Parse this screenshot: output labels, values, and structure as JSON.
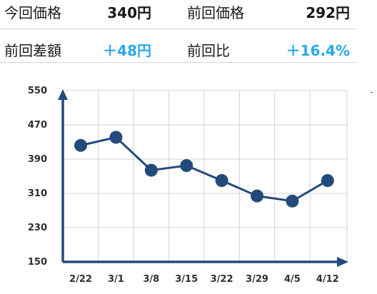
{
  "stats": {
    "current_price_label": "今回価格",
    "current_price_value": "340円",
    "previous_price_label": "前回価格",
    "previous_price_value": "292円",
    "diff_label": "前回差額",
    "diff_value": "＋48円",
    "ratio_label": "前回比",
    "ratio_value": "＋16.4%",
    "accent_color": "#2aa8e6"
  },
  "chart_data": {
    "type": "line",
    "title": "",
    "xlabel": "",
    "ylabel": "",
    "categories": [
      "2/22",
      "3/1",
      "3/8",
      "3/15",
      "3/22",
      "3/29",
      "4/5",
      "4/12"
    ],
    "series": [
      {
        "values": [
          422,
          441,
          364,
          375,
          340,
          304,
          292,
          340
        ]
      }
    ],
    "ylim": [
      150,
      550
    ],
    "yticks": [
      150,
      230,
      310,
      390,
      470,
      550
    ],
    "grid": true,
    "line_color": "#224a7a"
  }
}
